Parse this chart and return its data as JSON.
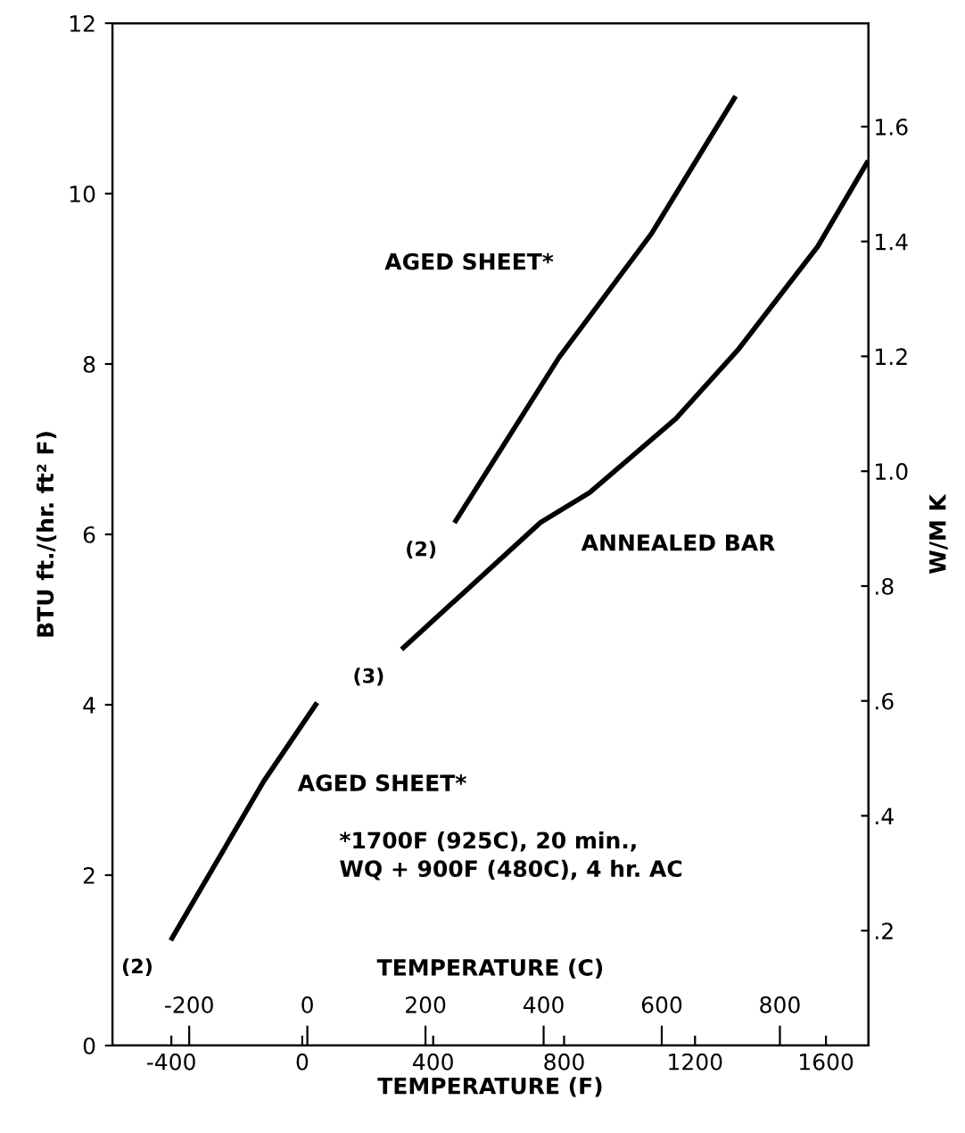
{
  "chart_data": {
    "type": "line",
    "xlabel": "TEMPERATURE (F)",
    "x2label": "TEMPERATURE (C)",
    "ylabel": "BTU ft./(hr. ft² F)",
    "y2label": "W/M K",
    "xlim": [
      -580,
      1730
    ],
    "xticks": [
      -400,
      0,
      400,
      800,
      1200,
      1600
    ],
    "x2lim": [
      -330,
      950
    ],
    "x2ticks": [
      -200,
      0,
      200,
      400,
      600,
      800
    ],
    "ylim": [
      0,
      12
    ],
    "yticks": [
      0,
      2,
      4,
      6,
      8,
      10,
      12
    ],
    "y2lim": [
      0,
      1.78
    ],
    "y2ticks": [
      {
        "value": 0.2,
        "label": ".2"
      },
      {
        "value": 0.4,
        "label": ".4"
      },
      {
        "value": 0.6,
        "label": ".6"
      },
      {
        "value": 0.8,
        "label": ".8"
      },
      {
        "value": 1.0,
        "label": "1.0"
      },
      {
        "value": 1.2,
        "label": "1.2"
      },
      {
        "value": 1.4,
        "label": "1.4"
      },
      {
        "value": 1.6,
        "label": "1.6"
      }
    ],
    "series": [
      {
        "name": "AGED SHEET*",
        "color": "#000000",
        "x": [
          -398,
          -118,
          41
        ],
        "values": [
          1.26,
          3.1,
          4.0
        ]
      },
      {
        "name": "AGED SHEET*",
        "color": "#000000",
        "x": [
          469,
          785,
          1067,
          1320
        ],
        "values": [
          6.16,
          8.08,
          9.53,
          11.12
        ]
      },
      {
        "name": "ANNEALED BAR",
        "color": "#000000",
        "x": [
          309,
          728,
          878,
          1142,
          1330,
          1575,
          1725
        ],
        "values": [
          4.67,
          6.14,
          6.49,
          7.36,
          8.16,
          9.38,
          10.36
        ]
      }
    ],
    "annotations": [
      {
        "text": "(2)",
        "x": -398,
        "y": 1.26
      },
      {
        "text": "(2)",
        "x": 469,
        "y": 6.16
      },
      {
        "text": "(3)",
        "x": 309,
        "y": 4.67
      },
      "*1700F (925C), 20 min.,\nWQ + 900F (480C), 4 hr. AC"
    ],
    "grid": false,
    "legend": false,
    "marker": "none",
    "line_style": "solid"
  }
}
